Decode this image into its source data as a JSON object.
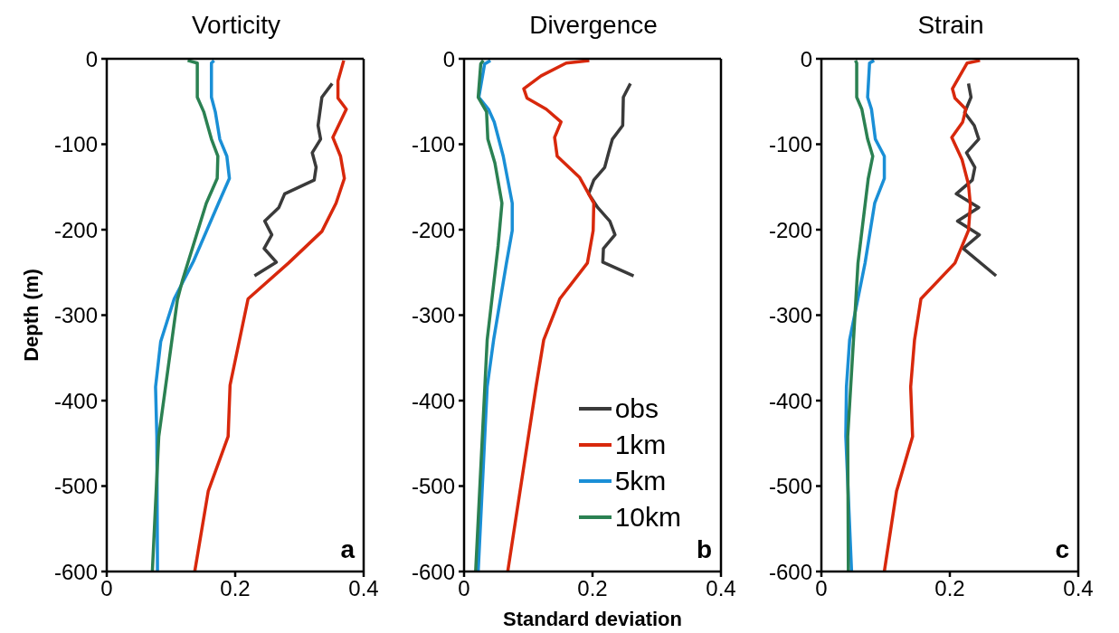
{
  "chart_data": [
    {
      "type": "line",
      "title": "Vorticity",
      "ylabel": "Depth (m)",
      "xlim": [
        0,
        0.4
      ],
      "xticks": [
        0,
        0.2,
        0.4
      ],
      "ylim": [
        -600,
        0
      ],
      "yticks": [
        -600,
        -500,
        -400,
        -300,
        -200,
        -100,
        0
      ],
      "marker": "none",
      "line_style": "solid",
      "annotations": [
        "a"
      ],
      "series": [
        {
          "color": "#3a3a3a",
          "x": [
            0.351,
            0.335,
            0.329,
            0.333,
            0.32,
            0.326,
            0.323,
            0.277,
            0.268,
            0.246,
            0.257,
            0.245,
            0.264,
            0.23
          ],
          "values": [
            -29,
            -45,
            -78,
            -94,
            -110,
            -127,
            -142,
            -158,
            -174,
            -190,
            -206,
            -222,
            -238,
            -254
          ]
        },
        {
          "color": "#d8280c",
          "x": [
            0.369,
            0.36,
            0.36,
            0.373,
            0.352,
            0.364,
            0.37,
            0.357,
            0.335,
            0.283,
            0.22,
            0.192,
            0.189,
            0.158,
            0.137
          ],
          "values": [
            -2,
            -26,
            -46,
            -59,
            -92,
            -114,
            -140,
            -169,
            -202,
            -239,
            -281,
            -382,
            -442,
            -506,
            -600
          ]
        },
        {
          "color": "#1a8fd6",
          "x": [
            0.167,
            0.163,
            0.163,
            0.169,
            0.176,
            0.187,
            0.191,
            0.174,
            0.135,
            0.105,
            0.084,
            0.076,
            0.078,
            0.079
          ],
          "values": [
            -2,
            -5,
            -45,
            -62,
            -94,
            -114,
            -140,
            -169,
            -237,
            -281,
            -331,
            -384,
            -442,
            -600
          ]
        },
        {
          "color": "#2b8152",
          "x": [
            0.126,
            0.141,
            0.141,
            0.151,
            0.163,
            0.173,
            0.172,
            0.155,
            0.118,
            0.11,
            0.081,
            0.071
          ],
          "values": [
            -2,
            -5,
            -45,
            -62,
            -94,
            -114,
            -140,
            -169,
            -259,
            -282,
            -442,
            -600
          ]
        }
      ]
    },
    {
      "type": "line",
      "title": "Divergence",
      "xlabel": "Standard deviation",
      "xlim": [
        0,
        0.4
      ],
      "xticks": [
        0,
        0.2,
        0.4
      ],
      "ylim": [
        -600,
        0
      ],
      "yticks": [
        -600,
        -500,
        -400,
        -300,
        -200,
        -100,
        0
      ],
      "legend": "bottom right",
      "marker": "none",
      "line_style": "solid",
      "annotations": [
        "b"
      ],
      "series": [
        {
          "name": "obs",
          "color": "#3a3a3a",
          "x": [
            0.259,
            0.248,
            0.247,
            0.231,
            0.225,
            0.219,
            0.202,
            0.194,
            0.208,
            0.227,
            0.235,
            0.217,
            0.216,
            0.264
          ],
          "values": [
            -29,
            -45,
            -78,
            -94,
            -110,
            -127,
            -142,
            -158,
            -174,
            -190,
            -206,
            -222,
            -238,
            -254
          ]
        },
        {
          "name": "1km",
          "color": "#d8280c",
          "x": [
            0.195,
            0.159,
            0.12,
            0.093,
            0.098,
            0.128,
            0.151,
            0.141,
            0.145,
            0.18,
            0.202,
            0.201,
            0.192,
            0.149,
            0.124,
            0.112,
            0.068
          ],
          "values": [
            -2,
            -5,
            -20,
            -35,
            -46,
            -59,
            -74,
            -92,
            -114,
            -139,
            -169,
            -201,
            -239,
            -281,
            -329,
            -384,
            -600
          ]
        },
        {
          "name": "5km",
          "color": "#1a8fd6",
          "x": [
            0.041,
            0.032,
            0.023,
            0.038,
            0.047,
            0.061,
            0.075,
            0.075,
            0.066,
            0.046,
            0.036,
            0.022
          ],
          "values": [
            -2,
            -6,
            -45,
            -59,
            -74,
            -114,
            -169,
            -201,
            -239,
            -329,
            -384,
            -600
          ]
        },
        {
          "name": "10km",
          "color": "#2b8152",
          "x": [
            0.03,
            0.026,
            0.022,
            0.035,
            0.037,
            0.048,
            0.059,
            0.053,
            0.036,
            0.018
          ],
          "values": [
            -2,
            -6,
            -45,
            -62,
            -94,
            -122,
            -169,
            -219,
            -329,
            -600
          ]
        }
      ]
    },
    {
      "type": "line",
      "title": "Strain",
      "xlim": [
        0,
        0.4
      ],
      "xticks": [
        0,
        0.2,
        0.4
      ],
      "ylim": [
        -600,
        0
      ],
      "yticks": [
        -600,
        -500,
        -400,
        -300,
        -200,
        -100,
        0
      ],
      "marker": "none",
      "line_style": "solid",
      "annotations": [
        "c"
      ],
      "series": [
        {
          "color": "#3a3a3a",
          "x": [
            0.229,
            0.233,
            0.223,
            0.238,
            0.245,
            0.226,
            0.239,
            0.235,
            0.21,
            0.245,
            0.212,
            0.246,
            0.221,
            0.272
          ],
          "values": [
            -29,
            -45,
            -63,
            -78,
            -94,
            -110,
            -127,
            -142,
            -158,
            -174,
            -190,
            -206,
            -222,
            -254
          ]
        },
        {
          "color": "#d8280c",
          "x": [
            0.247,
            0.227,
            0.204,
            0.208,
            0.225,
            0.22,
            0.203,
            0.219,
            0.229,
            0.232,
            0.229,
            0.208,
            0.155,
            0.145,
            0.139,
            0.142,
            0.117,
            0.098
          ],
          "values": [
            -2,
            -5,
            -35,
            -46,
            -59,
            -74,
            -92,
            -118,
            -147,
            -171,
            -201,
            -239,
            -281,
            -329,
            -384,
            -442,
            -506,
            -600
          ]
        },
        {
          "color": "#1a8fd6",
          "x": [
            0.082,
            0.075,
            0.072,
            0.078,
            0.084,
            0.098,
            0.098,
            0.083,
            0.068,
            0.044,
            0.039,
            0.038,
            0.047
          ],
          "values": [
            -2,
            -5,
            -45,
            -59,
            -94,
            -114,
            -140,
            -169,
            -239,
            -329,
            -384,
            -442,
            -600
          ]
        },
        {
          "color": "#2b8152",
          "x": [
            0.053,
            0.055,
            0.055,
            0.063,
            0.072,
            0.08,
            0.073,
            0.057,
            0.05,
            0.041,
            0.042
          ],
          "values": [
            -2,
            -5,
            -45,
            -59,
            -94,
            -114,
            -140,
            -239,
            -329,
            -442,
            -600
          ]
        }
      ]
    }
  ]
}
